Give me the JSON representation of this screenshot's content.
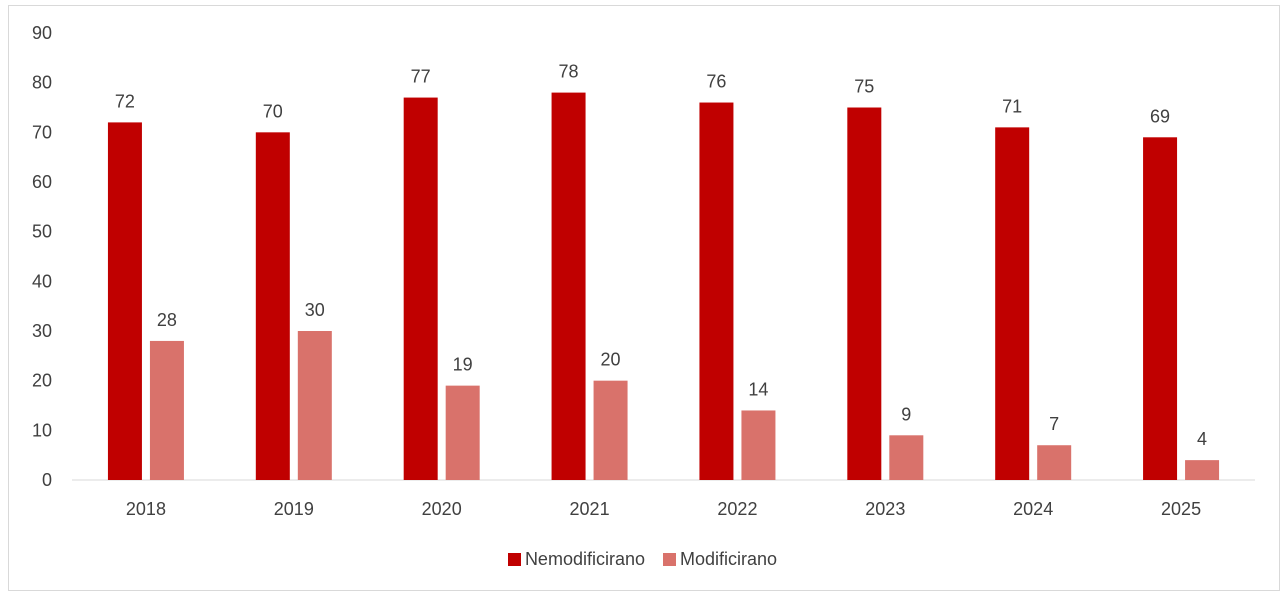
{
  "chart_data": {
    "type": "bar",
    "categories": [
      "2018",
      "2019",
      "2020",
      "2021",
      "2022",
      "2023",
      "2024",
      "2025"
    ],
    "series": [
      {
        "name": "Nemodificirano",
        "color": "#c00000",
        "values": [
          72,
          70,
          77,
          78,
          76,
          75,
          71,
          69
        ]
      },
      {
        "name": "Modificirano",
        "color": "#d9726b",
        "values": [
          28,
          30,
          19,
          20,
          14,
          9,
          7,
          4
        ]
      }
    ],
    "y_ticks": [
      "0",
      "10",
      "20",
      "30",
      "40",
      "50",
      "60",
      "70",
      "80",
      "90"
    ],
    "ylim": [
      0,
      90
    ],
    "grid": false,
    "data_labels": true,
    "legend": "bottom"
  }
}
